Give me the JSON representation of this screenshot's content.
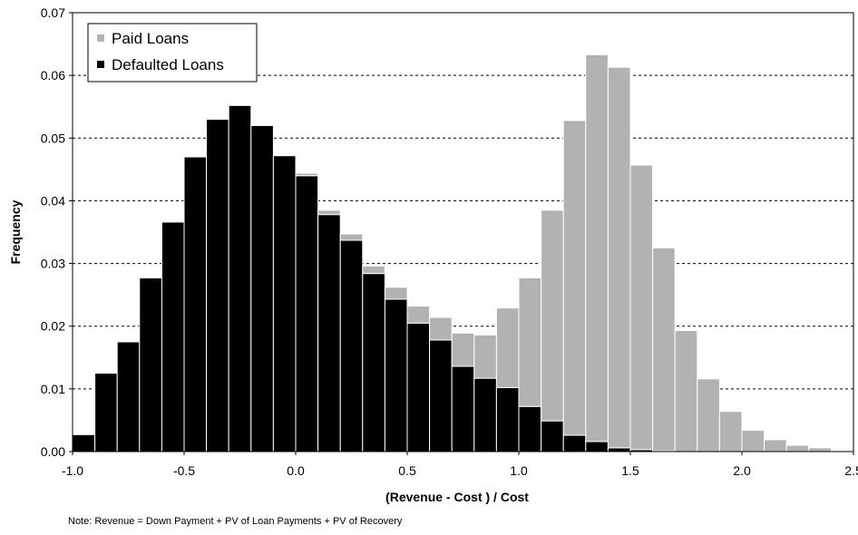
{
  "chart_data": {
    "type": "bar",
    "stacked": true,
    "xlabel": "(Revenue - Cost ) / Cost",
    "ylabel": "Frequency",
    "xlim": [
      -1.0,
      2.5
    ],
    "ylim": [
      0,
      0.07
    ],
    "x_ticks": [
      "-1.0",
      "-0.5",
      "0.0",
      "0.5",
      "1.0",
      "1.5",
      "2.0",
      "2.5"
    ],
    "y_ticks": [
      "0.00",
      "0.01",
      "0.02",
      "0.03",
      "0.04",
      "0.05",
      "0.06",
      "0.07"
    ],
    "bin_width": 0.1,
    "bin_starts": [
      -1.0,
      -0.9,
      -0.8,
      -0.7,
      -0.6,
      -0.5,
      -0.4,
      -0.3,
      -0.2,
      -0.1,
      0.0,
      0.1,
      0.2,
      0.3,
      0.4,
      0.5,
      0.6,
      0.7,
      0.8,
      0.9,
      1.0,
      1.1,
      1.2,
      1.3,
      1.4,
      1.5,
      1.6,
      1.7,
      1.8,
      1.9,
      2.0,
      2.1,
      2.2,
      2.3
    ],
    "series": [
      {
        "name": "Defaulted Loans",
        "color": "#000000",
        "values": [
          0.0027,
          0.0125,
          0.0175,
          0.0277,
          0.0366,
          0.047,
          0.053,
          0.0552,
          0.052,
          0.0472,
          0.044,
          0.0378,
          0.0337,
          0.0284,
          0.0243,
          0.0205,
          0.0178,
          0.0136,
          0.0117,
          0.0102,
          0.0072,
          0.0049,
          0.0026,
          0.0016,
          0.0006,
          0.0003,
          0.0001,
          0,
          0,
          0,
          0,
          0,
          0,
          0
        ]
      },
      {
        "name": "Paid Loans",
        "color": "#b2b2b2",
        "values": [
          0,
          0,
          0,
          0,
          0,
          0,
          0,
          0,
          0,
          0.0001,
          0.0004,
          0.0007,
          0.001,
          0.0012,
          0.0019,
          0.0027,
          0.0036,
          0.0053,
          0.0069,
          0.0127,
          0.0205,
          0.0336,
          0.0502,
          0.0617,
          0.0607,
          0.0454,
          0.0324,
          0.0193,
          0.0116,
          0.0064,
          0.0034,
          0.0019,
          0.001,
          0.0006
        ]
      }
    ],
    "grid": true,
    "legend": "top-left",
    "note": "Note: Revenue = Down Payment + PV of Loan Payments + PV of Recovery"
  }
}
